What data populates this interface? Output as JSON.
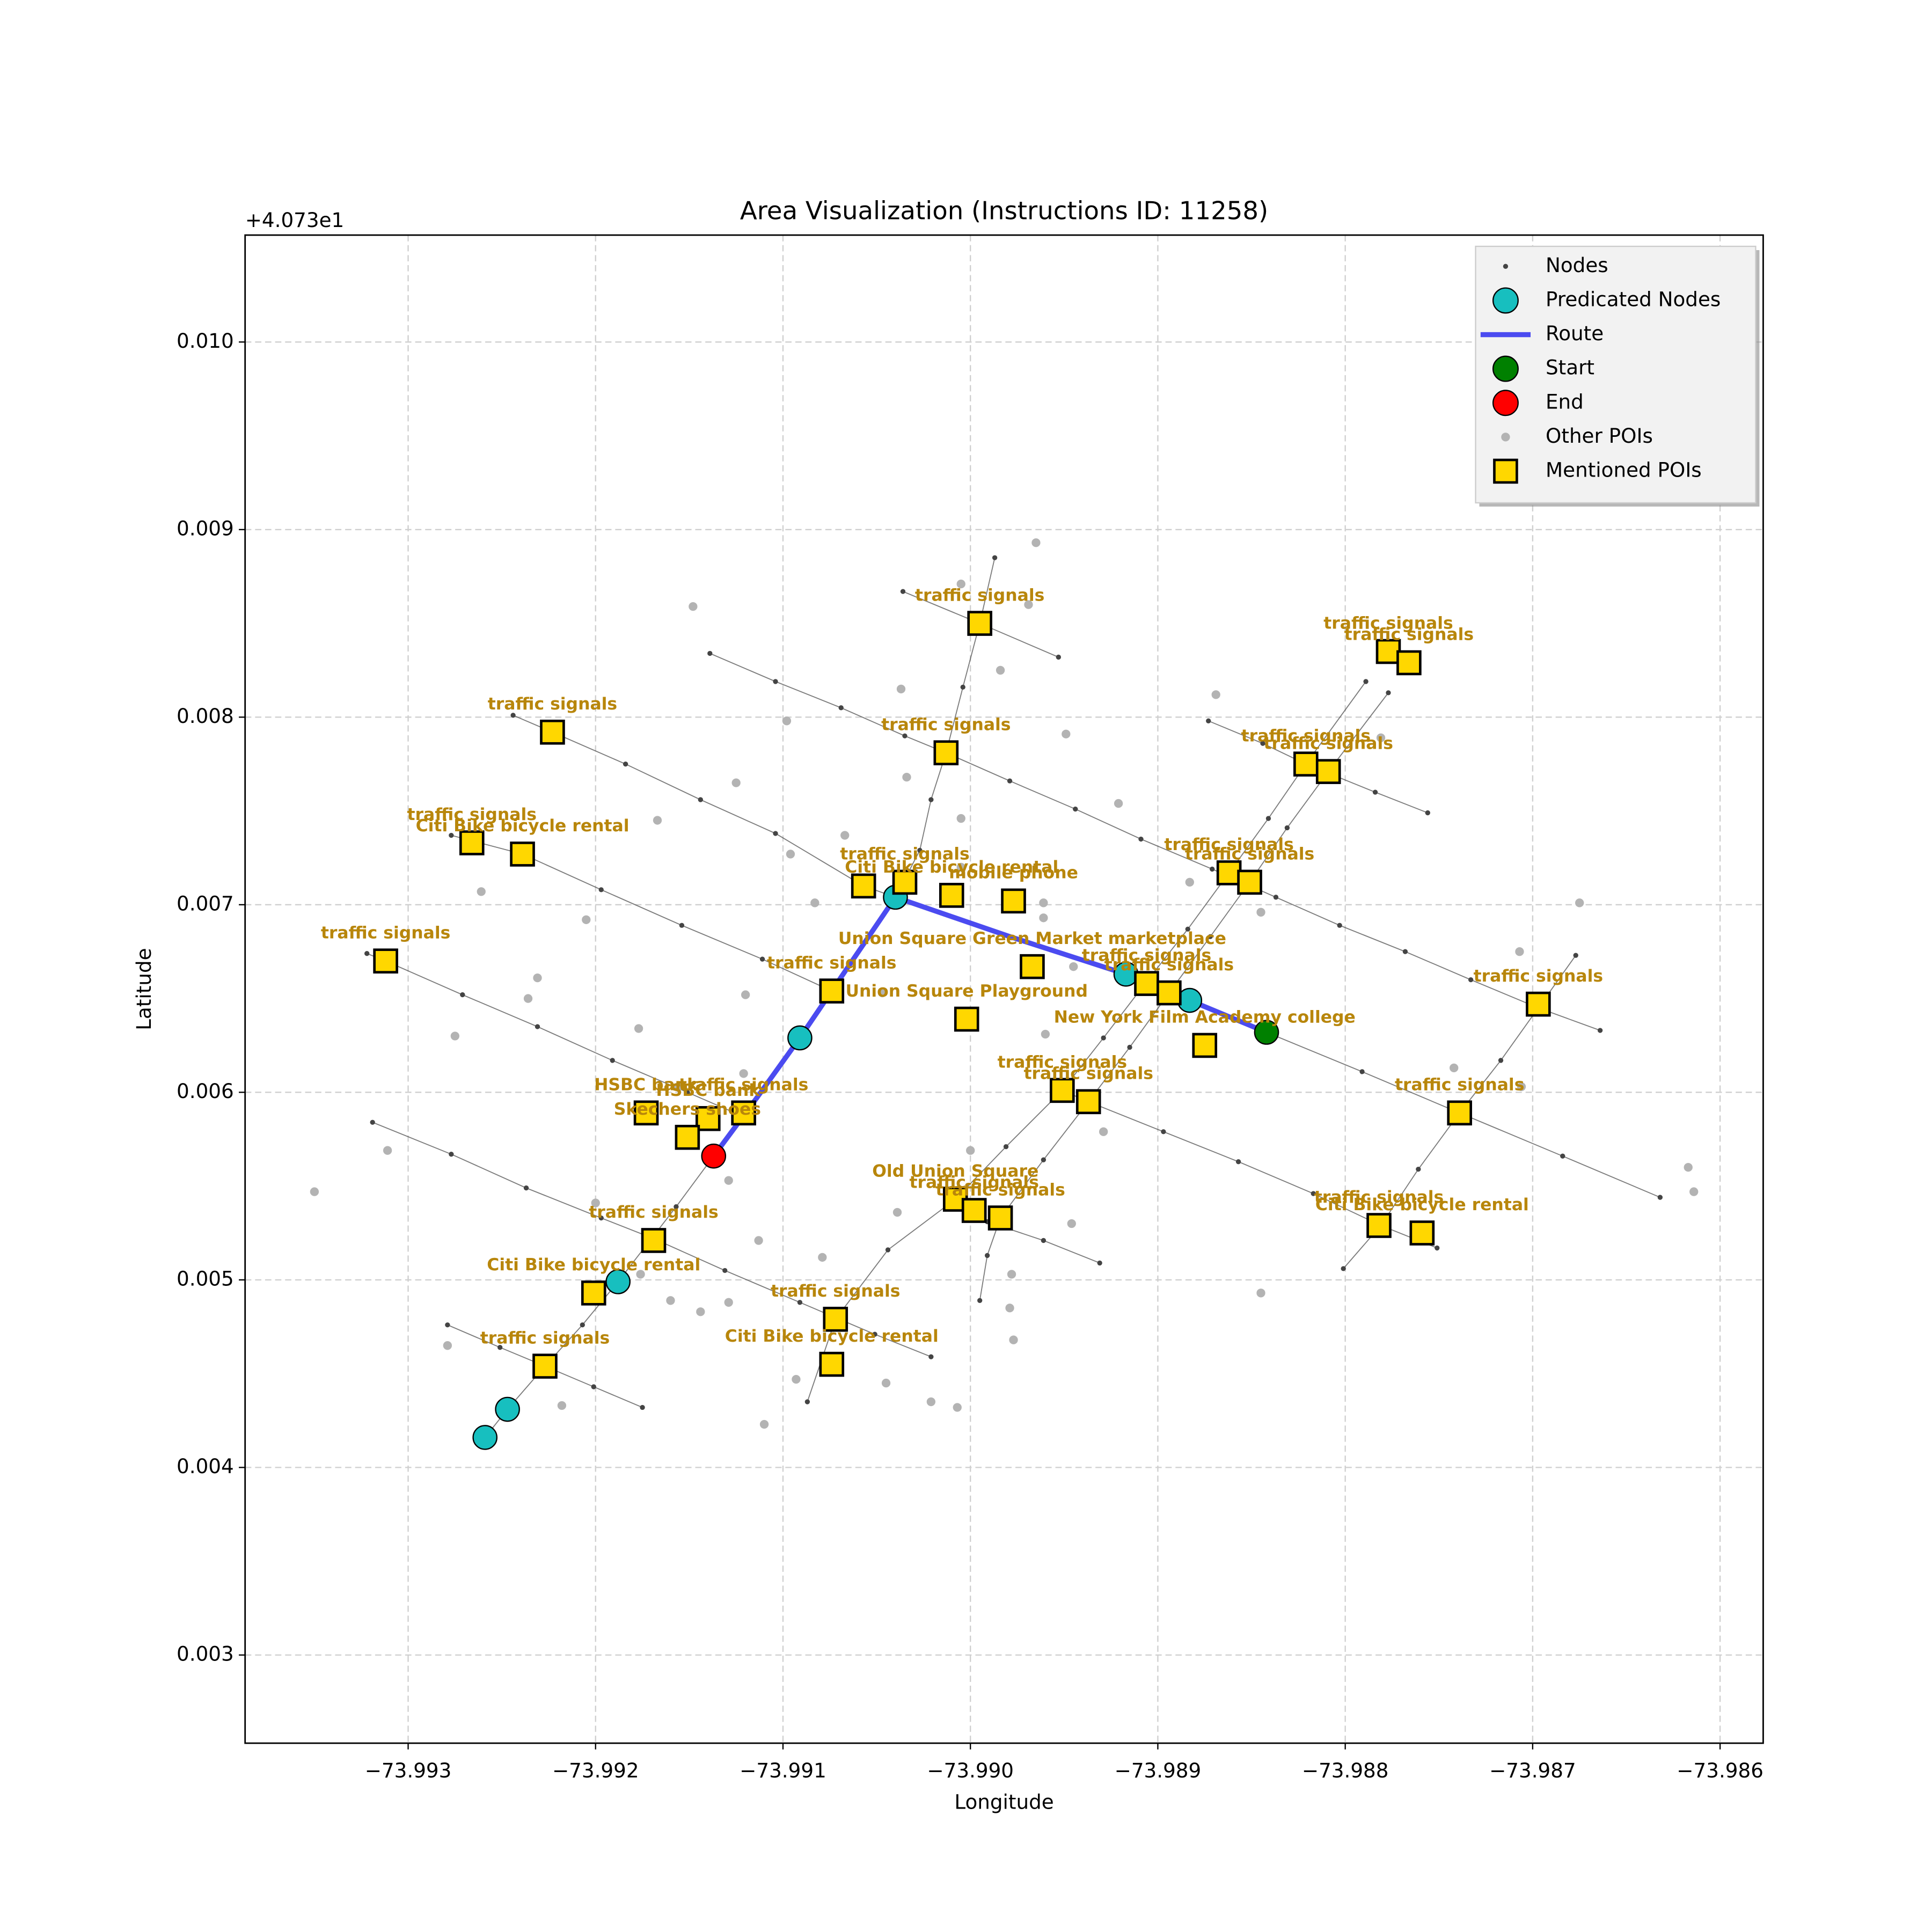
{
  "chart_data": {
    "type": "scatter",
    "title": "Area Visualization (Instructions ID: 11258)",
    "x_label": "Longitude",
    "y_label": "Latitude",
    "y_offset_label": "+4.073e1",
    "xlim": [
      -73.99387,
      -73.98577
    ],
    "ylim": [
      0.00253,
      0.01057
    ],
    "xticks": [
      {
        "value": -73.993,
        "label": "−73.993"
      },
      {
        "value": -73.992,
        "label": "−73.992"
      },
      {
        "value": -73.991,
        "label": "−73.991"
      },
      {
        "value": -73.99,
        "label": "−73.990"
      },
      {
        "value": -73.989,
        "label": "−73.989"
      },
      {
        "value": -73.988,
        "label": "−73.988"
      },
      {
        "value": -73.987,
        "label": "−73.987"
      },
      {
        "value": -73.986,
        "label": "−73.986"
      }
    ],
    "yticks": [
      0.003,
      0.004,
      0.005,
      0.006,
      0.007,
      0.008,
      0.009,
      {
        "value": 0.01,
        "label": "0.010"
      }
    ],
    "grid": true,
    "legend": "upper right",
    "label_color": "#b8860b",
    "series": [
      {
        "name": "Nodes",
        "style": "node",
        "color": "#444444",
        "x": [
          -73.99139,
          -73.99104,
          -73.99069,
          -73.99035,
          -73.99013,
          -73.98979,
          -73.98944,
          -73.98909,
          -73.98871,
          -73.98837,
          -73.98803,
          -73.98768,
          -73.98733,
          -73.98697,
          -73.98664,
          null,
          -73.98873,
          -73.98844,
          -73.98821,
          -73.98784,
          -73.98756,
          null,
          -73.99036,
          -73.98995,
          -73.98953,
          null,
          -73.99244,
          -73.99223,
          -73.99184,
          -73.99144,
          -73.99104,
          -73.99057,
          -73.9904,
          -73.98979,
          -73.98917,
          -73.98883,
          -73.98842,
          -73.98791,
          -73.98739,
          -73.98684,
          -73.98632,
          null,
          -73.99277,
          -73.99239,
          -73.99197,
          -73.99154,
          -73.99111,
          -73.99074,
          null,
          -73.98951,
          -73.98937,
          -73.98897,
          -73.98857,
          -73.98817,
          -73.98781,
          -73.98751,
          null,
          -73.99322,
          -73.99312,
          -73.99271,
          -73.99231,
          -73.99191,
          -73.99151,
          -73.99121,
          null,
          -73.99319,
          -73.99277,
          -73.99237,
          -73.99197,
          -73.99169,
          -73.99131,
          -73.99091,
          -73.99051,
          -73.99021,
          null,
          -73.99279,
          -73.99251,
          -73.99227,
          -73.99201,
          -73.99175,
          null,
          -73.98991,
          -73.98961,
          -73.98931,
          null,
          -73.98987,
          -73.98995,
          -73.99004,
          -73.99013,
          -73.99021,
          -73.99027,
          -73.9904,
          -73.99057,
          -73.99074,
          -73.99091,
          -73.99114,
          -73.99137,
          -73.99157,
          -73.99188,
          -73.99207,
          -73.99227,
          -73.99247,
          -73.99259,
          null,
          -73.98789,
          -73.98821,
          -73.98841,
          -73.98862,
          -73.98884,
          -73.98906,
          -73.98929,
          -73.98951,
          -73.98981,
          -73.99008,
          -73.99044,
          -73.99072,
          -73.99087,
          null,
          -73.98777,
          -73.98809,
          -73.98831,
          -73.98851,
          -73.98872,
          -73.98894,
          -73.98915,
          -73.98937,
          -73.98961,
          -73.98984,
          -73.98991,
          -73.98995,
          null,
          -73.98677,
          -73.98697,
          -73.98717,
          -73.98739,
          -73.98761,
          -73.98781,
          -73.98801
        ],
        "y": [
          0.00834,
          0.00819,
          0.00805,
          0.0079,
          0.00781,
          0.00766,
          0.00751,
          0.00735,
          0.00719,
          0.00704,
          0.00689,
          0.00675,
          0.0066,
          0.00645,
          0.00633,
          null,
          0.00798,
          0.00786,
          0.00775,
          0.0076,
          0.00749,
          null,
          0.00867,
          0.0085,
          0.00832,
          null,
          0.00801,
          0.00792,
          0.00775,
          0.00756,
          0.00738,
          0.0071,
          0.00704,
          0.00683,
          0.00663,
          0.00649,
          0.00632,
          0.00611,
          0.00589,
          0.00566,
          0.00544,
          null,
          0.00737,
          0.00727,
          0.00708,
          0.00689,
          0.00671,
          0.00654,
          null,
          0.00601,
          0.00595,
          0.00579,
          0.00563,
          0.00546,
          0.00529,
          0.00517,
          null,
          0.00674,
          0.0067,
          0.00652,
          0.00635,
          0.00617,
          0.006,
          0.00587,
          null,
          0.00584,
          0.00567,
          0.00549,
          0.00533,
          0.00522,
          0.00505,
          0.00488,
          0.00471,
          0.00459,
          null,
          0.00476,
          0.00464,
          0.00454,
          0.00443,
          0.00432,
          null,
          0.00531,
          0.00521,
          0.00509,
          null,
          0.00885,
          0.0085,
          0.00816,
          0.00781,
          0.00756,
          0.00729,
          0.00704,
          0.00679,
          0.00654,
          0.00629,
          0.00597,
          0.00566,
          0.00539,
          0.00499,
          0.00476,
          0.00454,
          0.00431,
          0.00416,
          null,
          0.00819,
          0.00775,
          0.00746,
          0.00717,
          0.00687,
          0.00659,
          0.00629,
          0.00601,
          0.00571,
          0.00543,
          0.00516,
          0.00479,
          0.00435,
          null,
          0.00813,
          0.00771,
          0.00741,
          0.00712,
          0.00683,
          0.00653,
          0.00624,
          0.00595,
          0.00564,
          0.00533,
          0.00513,
          0.00489,
          null,
          0.00673,
          0.00645,
          0.00617,
          0.00589,
          0.00559,
          0.00529,
          0.00506
        ]
      },
      {
        "name": "Predicated Nodes",
        "style": "circle",
        "color": "#17bfbf",
        "x": [
          -73.9904,
          -73.99091,
          -73.98917,
          -73.98883,
          -73.99188,
          -73.99247,
          -73.99259
        ],
        "y": [
          0.00704,
          0.00629,
          0.00663,
          0.00649,
          0.00499,
          0.00431,
          0.00416
        ]
      },
      {
        "name": "Route",
        "style": "line",
        "color": "#4b4bf0",
        "x": [
          -73.98842,
          -73.98883,
          -73.98917,
          -73.98979,
          -73.9904,
          -73.99057,
          -73.99074,
          -73.99091,
          -73.99114,
          -73.99137
        ],
        "y": [
          0.00632,
          0.00649,
          0.00663,
          0.00683,
          0.00704,
          0.00679,
          0.00654,
          0.00629,
          0.00597,
          0.00566
        ]
      },
      {
        "name": "Start",
        "style": "circle",
        "color": "#008000",
        "x": [
          -73.98842
        ],
        "y": [
          0.00632
        ]
      },
      {
        "name": "End",
        "style": "circle",
        "color": "#ff0000",
        "x": [
          -73.99137
        ],
        "y": [
          0.00566
        ]
      },
      {
        "name": "Other POIs",
        "style": "poi",
        "color": "#b3b3b3",
        "x": [
          -73.99148,
          -73.99037,
          -73.99005,
          -73.98965,
          -73.98969,
          -73.98984,
          -73.98949,
          -73.98869,
          -73.99098,
          -73.99125,
          -73.99034,
          -73.99005,
          -73.98921,
          -73.98961,
          -73.98961,
          -73.99005,
          -73.99067,
          -73.99083,
          -73.99096,
          -73.99167,
          -73.99205,
          -73.99261,
          -73.99231,
          -73.99236,
          -73.99275,
          -73.99177,
          -73.9912,
          -73.99047,
          -73.99121,
          -73.99156,
          -73.99129,
          -73.992,
          -73.99176,
          -73.9916,
          -73.99144,
          -73.99129,
          -73.99113,
          -73.99079,
          -73.9911,
          -73.99093,
          -73.99045,
          -73.99021,
          -73.99007,
          -73.99,
          -73.98979,
          -73.98977,
          -73.98978,
          -73.99039,
          -73.98946,
          -73.98929,
          -73.98945,
          -73.98883,
          -73.98845,
          -73.98781,
          -73.98742,
          -73.98707,
          -73.98675,
          -73.98617,
          -73.98614,
          -73.98845,
          -73.9935,
          -73.99311,
          -73.99218,
          -73.99279,
          -73.9896,
          -73.98706
        ],
        "y": [
          0.00859,
          0.00815,
          0.00871,
          0.00893,
          0.0086,
          0.00825,
          0.00791,
          0.00812,
          0.00798,
          0.00765,
          0.00768,
          0.00746,
          0.00754,
          0.00701,
          0.00693,
          0.0072,
          0.00737,
          0.00701,
          0.00727,
          0.00745,
          0.00692,
          0.00707,
          0.00661,
          0.0065,
          0.0063,
          0.00634,
          0.00652,
          0.00653,
          0.0061,
          0.00603,
          0.00553,
          0.00541,
          0.00503,
          0.00489,
          0.00483,
          0.00488,
          0.00521,
          0.00512,
          0.00423,
          0.00447,
          0.00445,
          0.00435,
          0.00432,
          0.00569,
          0.00485,
          0.00468,
          0.00503,
          0.00536,
          0.0053,
          0.00579,
          0.00667,
          0.00712,
          0.00696,
          0.00789,
          0.00613,
          0.00675,
          0.00701,
          0.0056,
          0.00547,
          0.00493,
          0.00547,
          0.00569,
          0.00433,
          0.00465,
          0.00631,
          0.00603
        ]
      },
      {
        "name": "Mentioned POIs",
        "style": "square",
        "color": "#ffd700",
        "x": [
          -73.98995,
          -73.99223,
          -73.99013,
          -73.98777,
          -73.98766,
          -73.98821,
          -73.98809,
          -73.99266,
          -73.99239,
          -73.99057,
          -73.99035,
          -73.9901,
          -73.98977,
          -73.98967,
          -73.99074,
          -73.99002,
          -73.98906,
          -73.98894,
          -73.98862,
          -73.98851,
          -73.98875,
          -73.98697,
          -73.99312,
          -73.99173,
          -73.9914,
          -73.99121,
          -73.99151,
          -73.98951,
          -73.98937,
          -73.98739,
          -73.99008,
          -73.98998,
          -73.98984,
          -73.98782,
          -73.98759,
          -73.99169,
          -73.99201,
          -73.99072,
          -73.99074,
          -73.99227
        ],
        "y": [
          0.0085,
          0.00792,
          0.00781,
          0.00835,
          0.00829,
          0.00775,
          0.00771,
          0.00733,
          0.00727,
          0.0071,
          0.00712,
          0.00705,
          0.00702,
          0.00667,
          0.00654,
          0.00639,
          0.00658,
          0.00653,
          0.00717,
          0.00712,
          0.00625,
          0.00647,
          0.0067,
          0.00589,
          0.00586,
          0.00589,
          0.00576,
          0.00601,
          0.00595,
          0.00589,
          0.00543,
          0.00537,
          0.00533,
          0.00529,
          0.00525,
          0.00521,
          0.00493,
          0.00479,
          0.00455,
          0.00454
        ],
        "labels": [
          "traffic signals",
          "traffic signals",
          "traffic signals",
          "traffic signals",
          "traffic signals",
          "traffic signals",
          "traffic signals",
          "traffic signals",
          "Citi Bike bicycle rental",
          null,
          "traffic signals",
          "Citi Bike bicycle rental",
          "mobile phone",
          "Union Square Green Market marketplace",
          "traffic signals",
          "Union Square Playground",
          "traffic signals",
          "traffic signals",
          "traffic signals",
          "traffic signals",
          "New York Film Academy college",
          "traffic signals",
          "traffic signals",
          "HSBC bank",
          "HSBC bank",
          "traffic signals",
          "Skechers shoes",
          "traffic signals",
          "traffic signals",
          "traffic signals",
          "Old Union Square",
          "traffic signals",
          "traffic signals",
          "traffic signals",
          "Citi Bike bicycle rental",
          "traffic signals",
          "Citi Bike bicycle rental",
          "traffic signals",
          "Citi Bike bicycle rental",
          "traffic signals"
        ]
      }
    ]
  }
}
